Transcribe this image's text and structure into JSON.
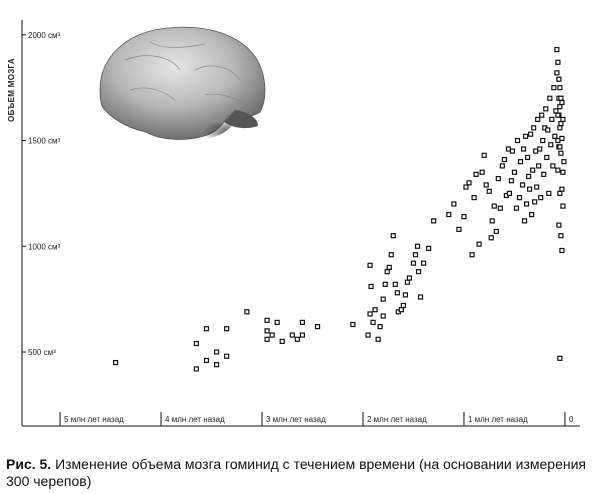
{
  "chart_data": {
    "type": "scatter",
    "ylabel": "ОБЪЕМ МОЗГА",
    "y_ticks": [
      {
        "value": 2000,
        "label": "2000 см³"
      },
      {
        "value": 1500,
        "label": "1500 см³"
      },
      {
        "value": 1000,
        "label": "1000 см³"
      },
      {
        "value": 500,
        "label": "500 см³"
      }
    ],
    "x_ticks": [
      {
        "value": 5,
        "label": "5 млн лет назад"
      },
      {
        "value": 4,
        "label": "4 млн лет назад"
      },
      {
        "value": 3,
        "label": "3 млн лет назад"
      },
      {
        "value": 2,
        "label": "2 млн лет назад"
      },
      {
        "value": 1,
        "label": "1 млн лет назад"
      },
      {
        "value": 0,
        "label": "0"
      }
    ],
    "xlim": [
      5.05,
      -0.05
    ],
    "ylim": [
      150,
      2070
    ],
    "x_reversed": true,
    "grid": false,
    "image": "brain-cast-photo",
    "points": [
      [
        4.45,
        450
      ],
      [
        3.65,
        540
      ],
      [
        3.65,
        420
      ],
      [
        3.55,
        460
      ],
      [
        3.55,
        610
      ],
      [
        3.45,
        500
      ],
      [
        3.45,
        440
      ],
      [
        3.35,
        610
      ],
      [
        3.35,
        480
      ],
      [
        3.15,
        690
      ],
      [
        2.95,
        650
      ],
      [
        2.95,
        600
      ],
      [
        2.95,
        560
      ],
      [
        2.9,
        580
      ],
      [
        2.85,
        640
      ],
      [
        2.8,
        550
      ],
      [
        2.7,
        580
      ],
      [
        2.65,
        560
      ],
      [
        2.6,
        580
      ],
      [
        2.6,
        640
      ],
      [
        2.45,
        620
      ],
      [
        2.1,
        630
      ],
      [
        1.95,
        580
      ],
      [
        1.93,
        680
      ],
      [
        1.93,
        910
      ],
      [
        1.92,
        810
      ],
      [
        1.9,
        640
      ],
      [
        1.88,
        700
      ],
      [
        1.85,
        560
      ],
      [
        1.83,
        620
      ],
      [
        1.8,
        670
      ],
      [
        1.8,
        750
      ],
      [
        1.78,
        820
      ],
      [
        1.76,
        880
      ],
      [
        1.74,
        900
      ],
      [
        1.72,
        960
      ],
      [
        1.7,
        1050
      ],
      [
        1.68,
        820
      ],
      [
        1.66,
        780
      ],
      [
        1.65,
        690
      ],
      [
        1.62,
        700
      ],
      [
        1.6,
        720
      ],
      [
        1.58,
        770
      ],
      [
        1.56,
        830
      ],
      [
        1.54,
        850
      ],
      [
        1.5,
        920
      ],
      [
        1.48,
        960
      ],
      [
        1.46,
        1000
      ],
      [
        1.45,
        880
      ],
      [
        1.43,
        760
      ],
      [
        1.4,
        920
      ],
      [
        1.35,
        990
      ],
      [
        1.3,
        1120
      ],
      [
        1.15,
        1150
      ],
      [
        1.1,
        1200
      ],
      [
        1.05,
        1080
      ],
      [
        1.0,
        1140
      ],
      [
        0.98,
        1280
      ],
      [
        0.95,
        1300
      ],
      [
        0.92,
        960
      ],
      [
        0.9,
        1230
      ],
      [
        0.88,
        1340
      ],
      [
        0.85,
        1010
      ],
      [
        0.82,
        1350
      ],
      [
        0.8,
        1430
      ],
      [
        0.78,
        1290
      ],
      [
        0.75,
        1260
      ],
      [
        0.73,
        1040
      ],
      [
        0.72,
        1120
      ],
      [
        0.7,
        1190
      ],
      [
        0.68,
        1070
      ],
      [
        0.66,
        1320
      ],
      [
        0.64,
        1180
      ],
      [
        0.62,
        1380
      ],
      [
        0.6,
        1410
      ],
      [
        0.58,
        1240
      ],
      [
        0.56,
        1460
      ],
      [
        0.55,
        1250
      ],
      [
        0.53,
        1310
      ],
      [
        0.52,
        1450
      ],
      [
        0.5,
        1350
      ],
      [
        0.48,
        1180
      ],
      [
        0.47,
        1500
      ],
      [
        0.45,
        1230
      ],
      [
        0.44,
        1400
      ],
      [
        0.42,
        1290
      ],
      [
        0.41,
        1460
      ],
      [
        0.4,
        1120
      ],
      [
        0.39,
        1520
      ],
      [
        0.38,
        1200
      ],
      [
        0.37,
        1420
      ],
      [
        0.36,
        1330
      ],
      [
        0.35,
        1270
      ],
      [
        0.34,
        1530
      ],
      [
        0.33,
        1150
      ],
      [
        0.32,
        1360
      ],
      [
        0.31,
        1560
      ],
      [
        0.3,
        1210
      ],
      [
        0.29,
        1450
      ],
      [
        0.28,
        1280
      ],
      [
        0.27,
        1600
      ],
      [
        0.26,
        1380
      ],
      [
        0.25,
        1460
      ],
      [
        0.24,
        1230
      ],
      [
        0.23,
        1620
      ],
      [
        0.22,
        1500
      ],
      [
        0.21,
        1340
      ],
      [
        0.2,
        1560
      ],
      [
        0.19,
        1650
      ],
      [
        0.18,
        1420
      ],
      [
        0.17,
        1550
      ],
      [
        0.16,
        1250
      ],
      [
        0.15,
        1700
      ],
      [
        0.14,
        1480
      ],
      [
        0.13,
        1600
      ],
      [
        0.12,
        1380
      ],
      [
        0.11,
        1750
      ],
      [
        0.1,
        1520
      ],
      [
        0.09,
        1640
      ],
      [
        0.08,
        1820
      ],
      [
        0.07,
        1500
      ],
      [
        0.06,
        1700
      ],
      [
        0.05,
        1560
      ],
      [
        0.04,
        1440
      ],
      [
        0.03,
        1680
      ],
      [
        0.02,
        1600
      ],
      [
        0.01,
        1400
      ],
      [
        0.08,
        1930
      ],
      [
        0.07,
        1870
      ],
      [
        0.06,
        1790
      ],
      [
        0.05,
        1660
      ],
      [
        0.04,
        1580
      ],
      [
        0.03,
        1510
      ],
      [
        0.02,
        1350
      ],
      [
        0.06,
        1100
      ],
      [
        0.04,
        1050
      ],
      [
        0.03,
        980
      ],
      [
        0.05,
        1250
      ],
      [
        0.02,
        1190
      ],
      [
        0.03,
        1270
      ],
      [
        0.06,
        1470
      ],
      [
        0.07,
        1360
      ],
      [
        0.04,
        1700
      ],
      [
        0.05,
        1750
      ],
      [
        0.06,
        1620
      ],
      [
        0.07,
        1620
      ],
      [
        0.05,
        1470
      ],
      [
        0.05,
        470
      ]
    ]
  },
  "caption": {
    "number": "Рис. 5.",
    "text": " Изменение объема мозга гоминид с течением времени (на основании измерения 300 черепов)"
  }
}
